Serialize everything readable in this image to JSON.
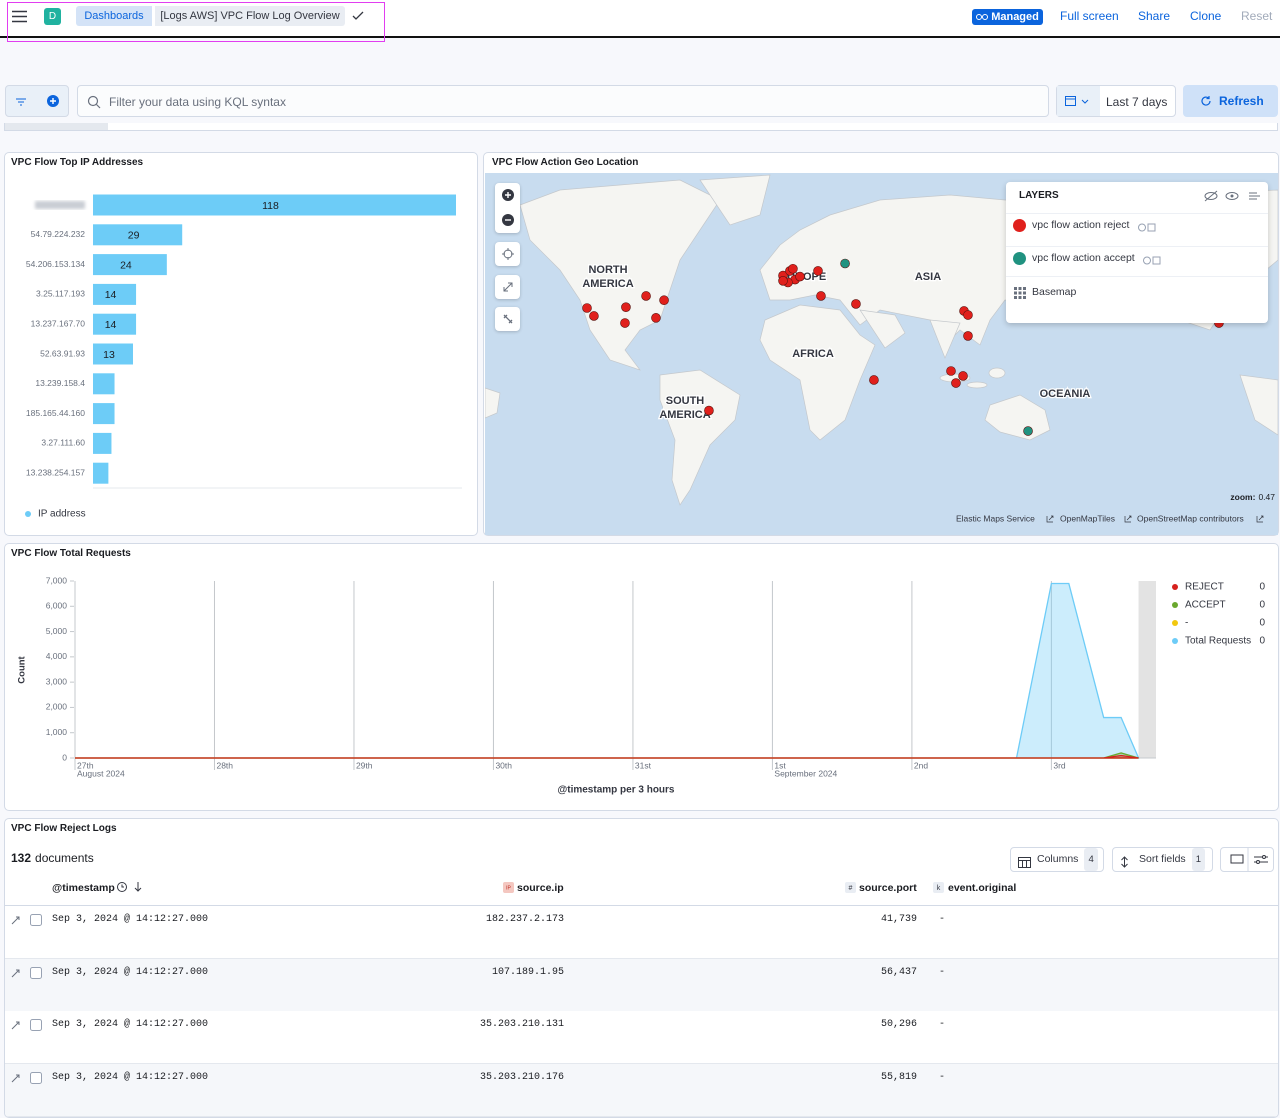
{
  "header": {
    "logo": "D",
    "breadcrumbs": [
      "Dashboards",
      "[Logs AWS] VPC Flow Log Overview"
    ],
    "badge": "Managed",
    "actions": [
      "Full screen",
      "Share",
      "Clone",
      "Reset"
    ]
  },
  "query": {
    "placeholder": "Filter your data using KQL syntax",
    "time_range": "Last 7 days",
    "refresh": "Refresh"
  },
  "chart_data": [
    {
      "type": "bar",
      "orientation": "horizontal",
      "title": "VPC Flow Top IP Addresses",
      "categories": [
        null,
        "54.79.224.232",
        "54.206.153.134",
        "3.25.117.193",
        "13.237.167.70",
        "52.63.91.93",
        "13.239.158.4",
        "185.165.44.160",
        "3.27.111.60",
        "13.238.254.157"
      ],
      "series": [
        {
          "name": "IP address",
          "color": "#6dccf7",
          "values": [
            118,
            29,
            24,
            14,
            14,
            13,
            7,
            7,
            6,
            5
          ]
        }
      ]
    },
    {
      "type": "area",
      "title": "VPC Flow Total Requests",
      "ylabel": "Count",
      "xlabel": "@timestamp per 3 hours",
      "x": [
        "2024-08-27T00:00",
        "2024-09-02T15:00",
        "2024-09-02T18:00",
        "2024-09-02T21:00",
        "2024-09-03T00:00",
        "2024-09-03T03:00",
        "2024-09-03T06:00",
        "2024-09-03T09:00",
        "2024-09-03T12:00",
        "2024-09-03T15:00"
      ],
      "xlim": [
        "2024-08-27T00:00",
        "2024-09-03T18:00"
      ],
      "xticks": [
        {
          "value": "2024-08-27T00:00",
          "label": "27th",
          "sublabel": "August 2024"
        },
        {
          "value": "2024-08-28T00:00",
          "label": "28th"
        },
        {
          "value": "2024-08-29T00:00",
          "label": "29th"
        },
        {
          "value": "2024-08-30T00:00",
          "label": "30th"
        },
        {
          "value": "2024-08-31T00:00",
          "label": "31st"
        },
        {
          "value": "2024-09-01T00:00",
          "label": "1st",
          "sublabel": "September 2024"
        },
        {
          "value": "2024-09-02T00:00",
          "label": "2nd"
        },
        {
          "value": "2024-09-03T00:00",
          "label": "3rd"
        }
      ],
      "partial_from": "2024-09-03T15:00",
      "ylim": [
        0,
        7000
      ],
      "yticks": [
        0,
        {
          "value": 1000,
          "label": "1,000"
        },
        {
          "value": 2000,
          "label": "2,000"
        },
        {
          "value": 3000,
          "label": "3,000"
        },
        {
          "value": 4000,
          "label": "4,000"
        },
        {
          "value": 5000,
          "label": "5,000"
        },
        {
          "value": 6000,
          "label": "6,000"
        },
        {
          "value": 7000,
          "label": "7,000"
        }
      ],
      "series": [
        {
          "name": "REJECT",
          "color": "#d6201d",
          "legend_value": 0,
          "values": [
            0,
            0,
            0,
            0,
            0,
            0,
            0,
            0,
            100,
            0
          ]
        },
        {
          "name": "ACCEPT",
          "color": "#6aa82e",
          "legend_value": 0,
          "values": [
            0,
            0,
            0,
            0,
            0,
            0,
            0,
            0,
            200,
            0
          ]
        },
        {
          "name": "-",
          "color": "#f2c80f",
          "legend_value": 0,
          "values": [
            0,
            0,
            0,
            0,
            0,
            0,
            0,
            0,
            0,
            0
          ]
        },
        {
          "name": "Total Requests",
          "color": "#6dccf7",
          "legend_value": 0,
          "values": [
            0,
            0,
            0,
            3450,
            6900,
            6900,
            4250,
            1600,
            1600,
            0
          ]
        }
      ]
    }
  ],
  "map": {
    "title": "VPC Flow Action Geo Location",
    "labels": [
      [
        "NORTH",
        "AMERICA"
      ],
      [
        "EUROPE"
      ],
      [
        "ASIA"
      ],
      [
        "AFRICA"
      ],
      [
        "SOUTH",
        "AMERICA"
      ],
      [
        "OCEANIA"
      ]
    ],
    "layers_title": "LAYERS",
    "layers": [
      {
        "name": "vpc flow action reject",
        "color": "#e0201c",
        "points": [
          [
            -120,
            36.6
          ],
          [
            -115.8,
            32.5
          ],
          [
            -96.4,
            37
          ],
          [
            -97,
            28.7
          ],
          [
            -84.2,
            42.4
          ],
          [
            -78.2,
            31.5
          ],
          [
            -73.3,
            40.4
          ],
          [
            -1.2,
            51.1
          ],
          [
            3,
            52.9
          ],
          [
            6.1,
            49.5
          ],
          [
            1.8,
            48.3
          ],
          [
            9.1,
            50.7
          ],
          [
            20,
            52.9
          ],
          [
            -1.2,
            49
          ],
          [
            4.8,
            53.7
          ],
          [
            21.8,
            42.4
          ],
          [
            43,
            38.6
          ],
          [
            108.5,
            35.1
          ],
          [
            110.9,
            33
          ],
          [
            110.9,
            21.4
          ],
          [
            100.6,
            0
          ],
          [
            103.6,
            -7.5
          ],
          [
            107.9,
            -3.1
          ],
          [
            53.9,
            -5.6
          ],
          [
            -46.1,
            -24
          ]
        ]
      },
      {
        "name": "vpc flow action accept",
        "color": "#209280",
        "points": [
          [
            36.4,
            55.6
          ],
          [
            147.3,
            -35.1
          ]
        ]
      },
      {
        "name": "Basemap"
      }
    ],
    "zoom": {
      "label": "zoom:",
      "value": 0.47
    },
    "attribution": [
      "Elastic Maps Service",
      "OpenMapTiles",
      "OpenStreetMap contributors"
    ]
  },
  "table": {
    "title": "VPC Flow Reject Logs",
    "count": 132,
    "count_label": "documents",
    "buttons": [
      {
        "label": "Columns",
        "count": 4
      },
      {
        "label": "Sort fields",
        "count": 1
      }
    ],
    "columns": [
      "@timestamp",
      "source.ip",
      "source.port",
      "event.original"
    ],
    "rows": [
      [
        "Sep 3, 2024 @ 14:12:27.000",
        "182.237.2.173",
        "41,739",
        "-"
      ],
      [
        "Sep 3, 2024 @ 14:12:27.000",
        "107.189.1.95",
        "56,437",
        "-"
      ],
      [
        "Sep 3, 2024 @ 14:12:27.000",
        "35.203.210.131",
        "50,296",
        "-"
      ],
      [
        "Sep 3, 2024 @ 14:12:27.000",
        "35.203.210.176",
        "55,819",
        "-"
      ]
    ]
  }
}
